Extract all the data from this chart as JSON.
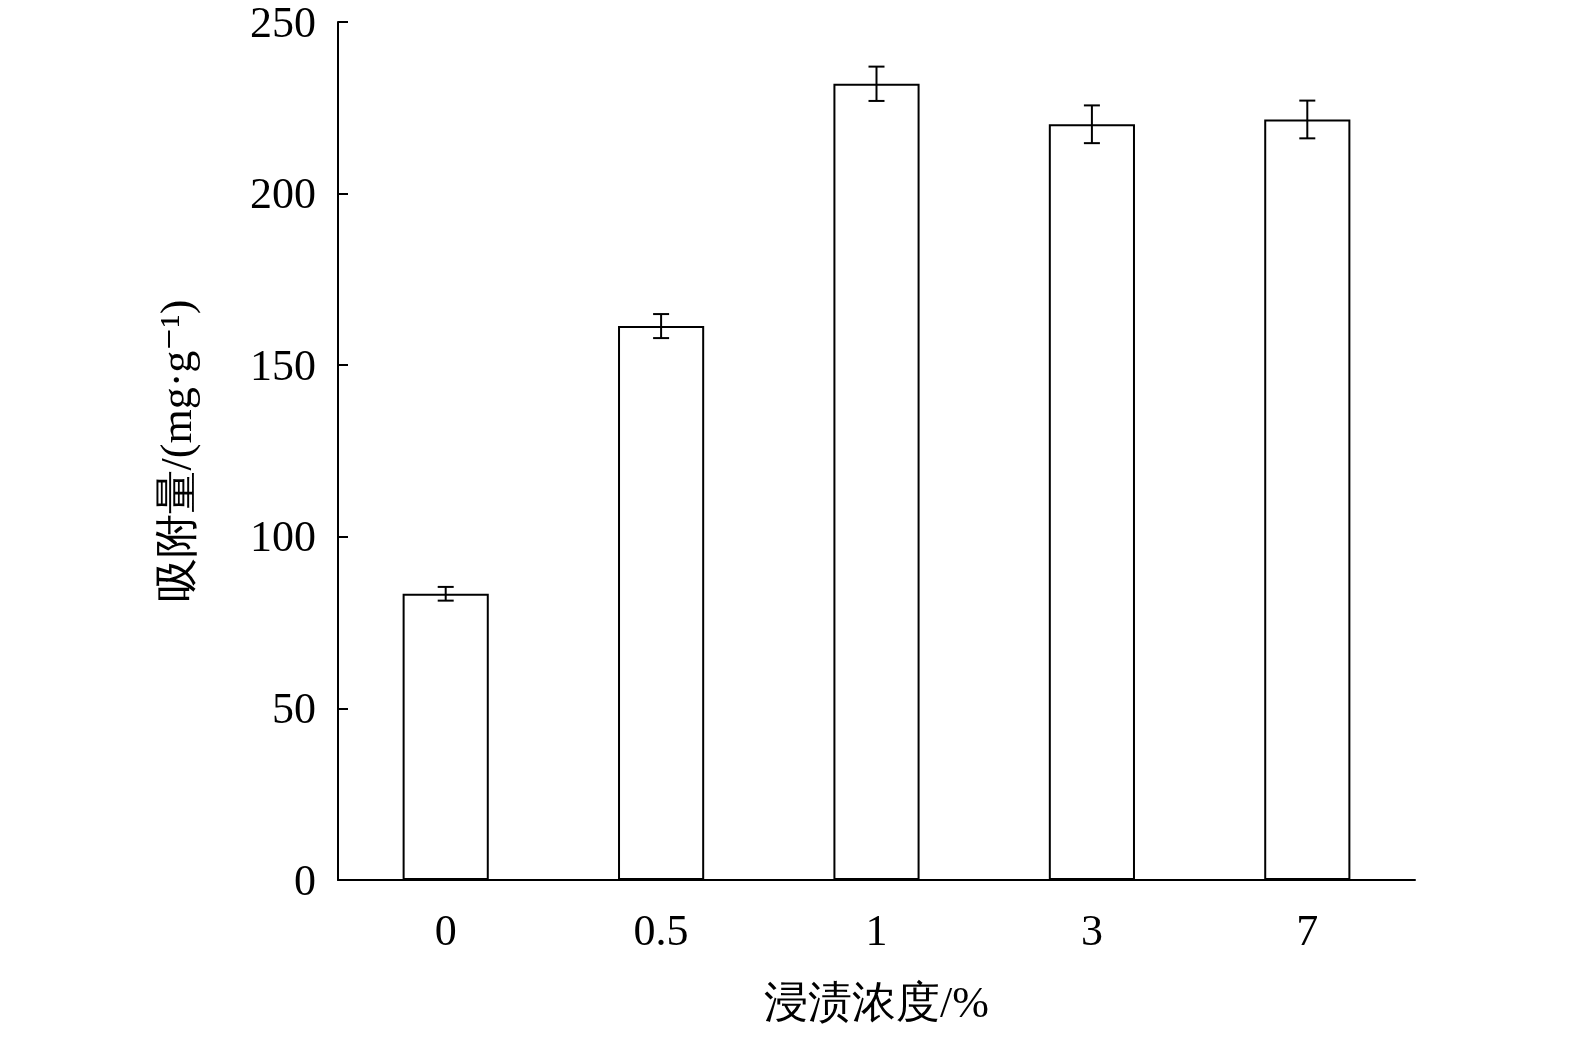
{
  "chart_data": {
    "type": "bar",
    "xlabel": "浸渍浓度/%",
    "ylabel": "吸附量/(mg·g⁻¹)",
    "categories": [
      "0",
      "0.5",
      "1",
      "3",
      "7"
    ],
    "values": [
      83.4,
      161.4,
      232,
      220.2,
      221.6
    ],
    "errors": [
      2,
      3.5,
      5,
      5.5,
      5.5
    ],
    "color": "#ffffff",
    "ylim": [
      0,
      250
    ],
    "yticks": [
      0,
      50,
      100,
      150,
      200,
      250
    ],
    "grid": false
  }
}
